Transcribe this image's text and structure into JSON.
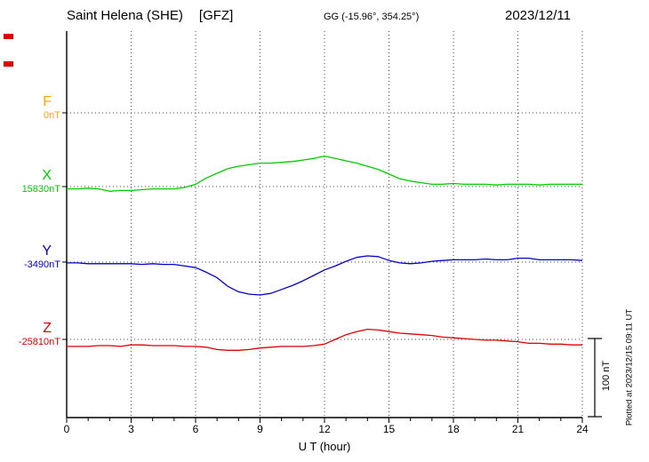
{
  "header": {
    "station": "Saint Helena (SHE)",
    "institute": "[GFZ]",
    "coords": "GG (-15.96°, 354.25°)",
    "date": "2023/12/11"
  },
  "footer": {
    "plotted_at": "Plotted at 2023/12/15 09:11 UT"
  },
  "colors": {
    "flag": "#dd0000",
    "grid": "#444444",
    "axis": "#000000"
  },
  "chart_data": {
    "type": "line",
    "title": "Saint Helena (SHE) [GFZ] magnetogram 2023/12/11",
    "xlabel": "U T (hour)",
    "ylabel": "",
    "xlim": [
      0,
      24
    ],
    "x_ticks": [
      0,
      3,
      6,
      9,
      12,
      15,
      18,
      21,
      24
    ],
    "dt_hours": 0.5,
    "grid": "dotted vertical lines every 3 h; dotted horizontal line at each trace baseline",
    "legend_position": "left baseline labels",
    "scale_bar": {
      "label": "100 nT",
      "nT": 100
    },
    "values_are": "deviation in nT from each trace baseline value",
    "series": [
      {
        "key": "F",
        "name": "F",
        "baseline_label": "0nT",
        "baseline_nT": 0,
        "color": "#ffa500",
        "values": []
      },
      {
        "key": "X",
        "name": "X",
        "baseline_label": "15830nT",
        "baseline_nT": 15830,
        "color": "#00cc00",
        "values": [
          -3,
          -3,
          -2,
          -3,
          -6,
          -5,
          -5,
          -4,
          -3,
          -3,
          -3,
          -1,
          3,
          11,
          17,
          23,
          26,
          28,
          30,
          30,
          31,
          32,
          34,
          36,
          39,
          36,
          33,
          30,
          26,
          22,
          16,
          10,
          7,
          5,
          3,
          3,
          4,
          3,
          3,
          3,
          2,
          3,
          3,
          3,
          2,
          3,
          3,
          3,
          3
        ]
      },
      {
        "key": "Y",
        "name": "Y",
        "baseline_label": "-3490nT",
        "baseline_nT": -3490,
        "color": "#0000cc",
        "values": [
          -1,
          -1,
          -2,
          -2,
          -2,
          -2,
          -2,
          -3,
          -2,
          -3,
          -3,
          -5,
          -7,
          -13,
          -20,
          -31,
          -38,
          -41,
          -42,
          -40,
          -35,
          -30,
          -24,
          -17,
          -10,
          -5,
          1,
          6,
          8,
          7,
          2,
          -1,
          -2,
          -1,
          1,
          2,
          3,
          3,
          3,
          4,
          3,
          3,
          5,
          5,
          3,
          3,
          3,
          3,
          2
        ]
      },
      {
        "key": "Z",
        "name": "Z",
        "baseline_label": "-25810nT",
        "baseline_nT": -25810,
        "color": "#dd0000",
        "values": [
          -9,
          -9,
          -9,
          -8,
          -8,
          -9,
          -7,
          -7,
          -8,
          -8,
          -8,
          -9,
          -9,
          -10,
          -13,
          -14,
          -14,
          -13,
          -11,
          -10,
          -9,
          -9,
          -9,
          -8,
          -6,
          0,
          6,
          10,
          13,
          12,
          10,
          8,
          7,
          6,
          5,
          3,
          2,
          1,
          0,
          -1,
          -1,
          -2,
          -3,
          -5,
          -5,
          -6,
          -6,
          -7,
          -7
        ]
      }
    ]
  }
}
